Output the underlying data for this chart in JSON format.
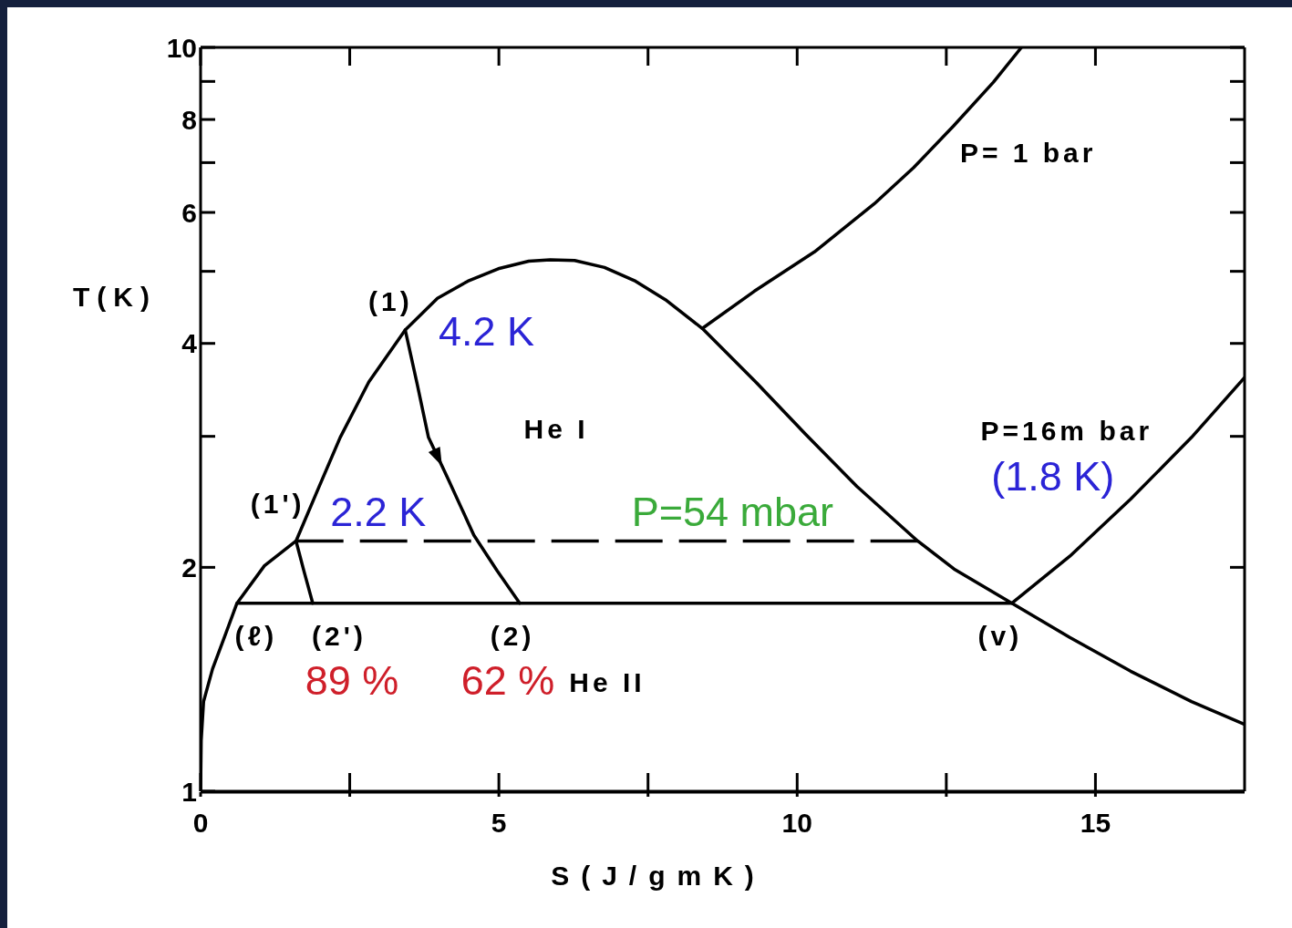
{
  "chart_data": {
    "type": "line",
    "xlabel": "S(J/gmK)",
    "ylabel": "T(K)",
    "xlim": [
      0,
      17.5
    ],
    "xticks": [
      0,
      {
        "value": 2.5,
        "label": null
      },
      5,
      {
        "value": 7.5,
        "label": null
      },
      10,
      {
        "value": 12.5,
        "label": null
      },
      15
    ],
    "ylim": [
      1,
      10
    ],
    "yticks": [
      1,
      2,
      {
        "value": 3,
        "label": null
      },
      4,
      {
        "value": 5,
        "label": null
      },
      6,
      {
        "value": 7,
        "label": null
      },
      8,
      {
        "value": 9,
        "label": null
      },
      10
    ],
    "log": true,
    "marker": "none",
    "line_style": "solid",
    "series": [
      {
        "color": "#000000",
        "x": [
          0,
          0.01,
          0.05,
          0.2,
          0.41,
          0.61,
          1.07,
          1.6,
          1.98,
          2.34,
          2.82,
          3.43,
          3.97,
          4.48,
          4.99,
          5.5,
          5.86,
          6.27,
          6.77,
          7.29,
          7.79,
          8.41,
          9.32,
          10.14,
          11.0,
          12.02,
          12.63,
          13.6,
          14.57,
          15.59,
          16.61,
          17.5
        ],
        "values": [
          1.0,
          1.17,
          1.32,
          1.46,
          1.62,
          1.79,
          2.01,
          2.17,
          2.56,
          2.99,
          3.55,
          4.17,
          4.6,
          4.85,
          5.04,
          5.16,
          5.18,
          5.17,
          5.06,
          4.85,
          4.58,
          4.19,
          3.54,
          3.02,
          2.57,
          2.17,
          1.99,
          1.79,
          1.61,
          1.45,
          1.32,
          1.23
        ]
      },
      {
        "color": "#000000",
        "x": [
          8.41,
          9.28,
          10.29,
          11.29,
          11.95,
          12.62,
          13.29,
          13.76
        ],
        "values": [
          4.19,
          4.7,
          5.31,
          6.16,
          6.89,
          7.84,
          8.98,
          10
        ]
      },
      {
        "color": "#000000",
        "line_style": "dashed",
        "x": [
          1.6,
          12.02
        ],
        "values": [
          2.17,
          2.17
        ]
      },
      {
        "color": "#000000",
        "x": [
          0.61,
          13.6,
          14.57,
          15.59,
          16.61,
          17.5
        ],
        "values": [
          1.79,
          1.79,
          2.07,
          2.47,
          2.99,
          3.6
        ]
      },
      {
        "color": "#000000",
        "x": [
          3.43,
          3.63,
          3.82,
          4.13,
          4.58,
          4.97,
          5.35
        ],
        "values": [
          4.17,
          3.53,
          2.99,
          2.65,
          2.21,
          1.98,
          1.79
        ]
      },
      {
        "color": "#000000",
        "x": [
          1.6,
          1.73,
          1.88
        ],
        "values": [
          2.17,
          1.98,
          1.79
        ]
      }
    ],
    "annotations": [
      {
        "text": "(1)",
        "x": 3.43,
        "y": 4.17
      },
      {
        "text": "4.2 K",
        "x": 3.43,
        "y": 4.17
      },
      {
        "text": "(1')",
        "x": 1.6,
        "y": 2.17
      },
      {
        "text": "2.2 K",
        "x": 1.6,
        "y": 2.17
      },
      {
        "text": "P=54 mbar",
        "x": 8.9,
        "y": 2.17
      },
      {
        "text": "(ℓ)",
        "x": 0.61,
        "y": 1.79
      },
      {
        "text": "(2')",
        "x": 1.88,
        "y": 1.79
      },
      {
        "text": "89 %",
        "x": 1.88,
        "y": 1.79
      },
      {
        "text": "(2)",
        "x": 5.35,
        "y": 1.79
      },
      {
        "text": "62 %",
        "x": 5.35,
        "y": 1.79
      },
      "He I",
      "He II",
      {
        "text": "(v)",
        "x": 13.6,
        "y": 1.79
      },
      {
        "text": "P= 1 bar",
        "x": 12.62,
        "y": 7.84
      },
      {
        "text": "P=16m bar",
        "x": 16.61,
        "y": 2.99
      },
      {
        "text": "(1.8 K)",
        "x": 16.61,
        "y": 2.99
      }
    ]
  }
}
